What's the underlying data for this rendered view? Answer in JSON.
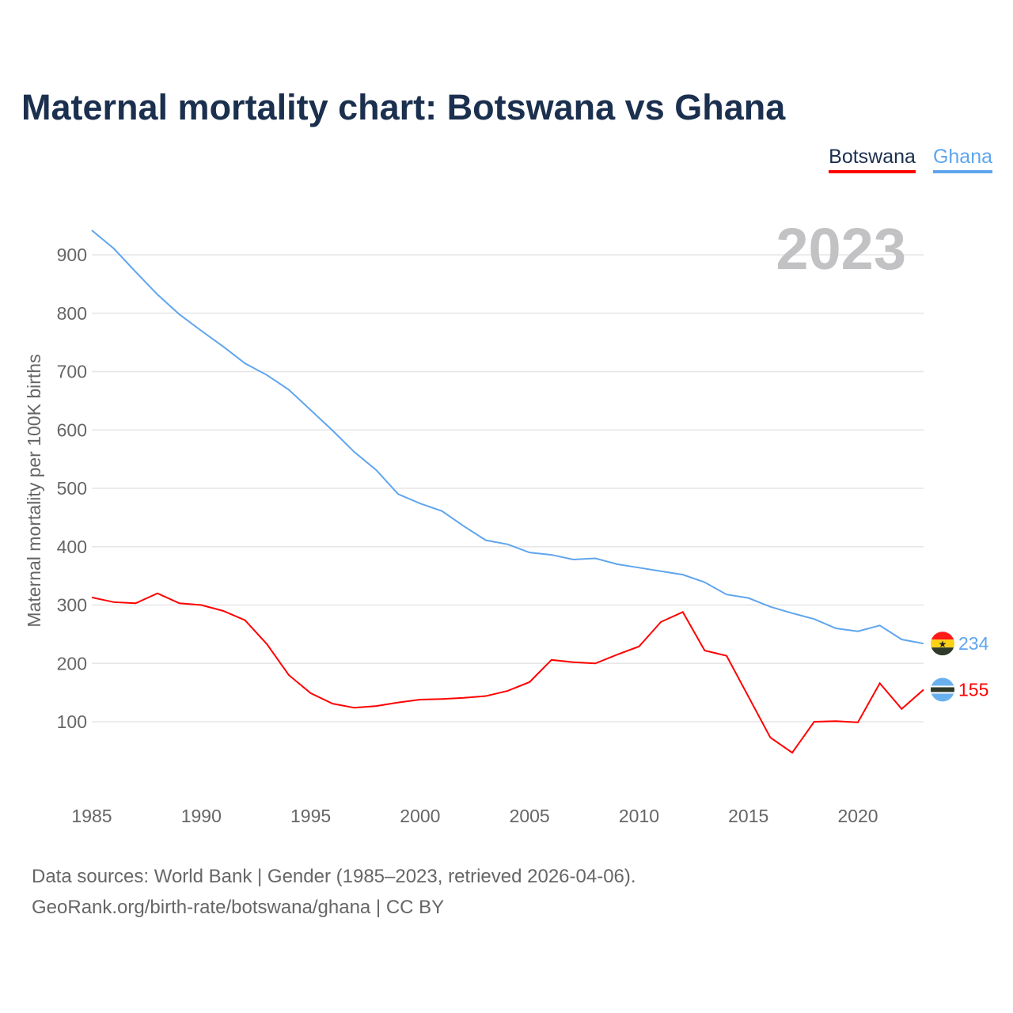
{
  "title": "Maternal mortality chart: Botswana vs Ghana",
  "legend": [
    {
      "label": "Botswana",
      "color": "#ff0000"
    },
    {
      "label": "Ghana",
      "color": "#5fa5ee"
    }
  ],
  "year_label": "2023",
  "footer": {
    "line1": "Data sources: World Bank | Gender (1985–2023, retrieved 2026-04-06).",
    "line2": "GeoRank.org/birth-rate/botswana/ghana | CC BY"
  },
  "chart_data": {
    "type": "line",
    "title": "Maternal mortality chart: Botswana vs Ghana",
    "xlabel": "",
    "ylabel": "Maternal mortality per 100K births",
    "xlim": [
      1985,
      2023
    ],
    "ylim": [
      0,
      950
    ],
    "xticks": [
      1985,
      1990,
      1995,
      2000,
      2005,
      2010,
      2015,
      2020
    ],
    "yticks": [
      100,
      200,
      300,
      400,
      500,
      600,
      700,
      800,
      900
    ],
    "grid": true,
    "legend_position": "top-right",
    "x": [
      1985,
      1986,
      1987,
      1988,
      1989,
      1990,
      1991,
      1992,
      1993,
      1994,
      1995,
      1996,
      1997,
      1998,
      1999,
      2000,
      2001,
      2002,
      2003,
      2004,
      2005,
      2006,
      2007,
      2008,
      2009,
      2010,
      2011,
      2012,
      2013,
      2014,
      2015,
      2016,
      2017,
      2018,
      2019,
      2020,
      2021,
      2022,
      2023
    ],
    "series": [
      {
        "name": "Botswana",
        "color": "#ff0000",
        "end_label": "155",
        "values": [
          313,
          305,
          303,
          320,
          303,
          300,
          290,
          274,
          233,
          180,
          149,
          131,
          124,
          127,
          133,
          138,
          139,
          141,
          144,
          153,
          168,
          206,
          202,
          200,
          215,
          229,
          271,
          288,
          222,
          213,
          143,
          73,
          47,
          100,
          101,
          99,
          166,
          122,
          155
        ]
      },
      {
        "name": "Ghana",
        "color": "#5fa5ee",
        "end_label": "234",
        "values": [
          942,
          911,
          871,
          832,
          798,
          770,
          743,
          714,
          694,
          669,
          634,
          599,
          562,
          531,
          490,
          474,
          461,
          435,
          411,
          404,
          390,
          386,
          378,
          380,
          370,
          364,
          358,
          352,
          339,
          318,
          312,
          297,
          286,
          276,
          260,
          255,
          265,
          241,
          234
        ]
      }
    ]
  }
}
